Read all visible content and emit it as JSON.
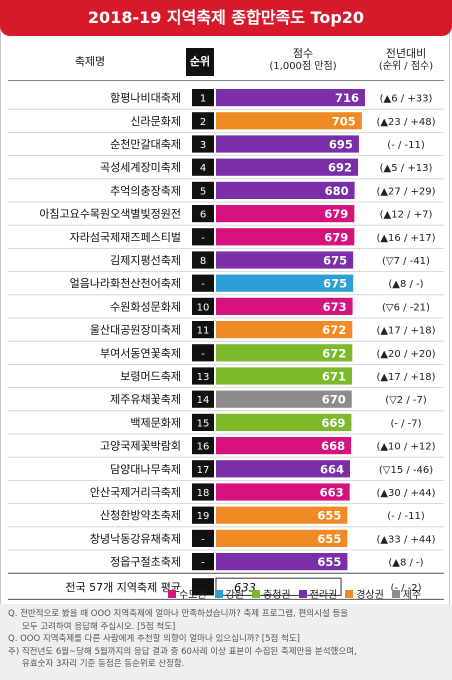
{
  "title": "2018-19 지역축제 종합만족도 Top20",
  "headers": {
    "name": "축제명",
    "rank": "순위",
    "score": "점수",
    "score_sub": "(1,000점 만점)",
    "change": "전년대비",
    "change_sub": "(순위 / 점수)"
  },
  "colors": {
    "수도권": "#d6127e",
    "강원": "#2c9fd6",
    "충청권": "#7cb92b",
    "전라권": "#7a2ea8",
    "경상권": "#f08a24",
    "제주": "#8c8c8c"
  },
  "legend": [
    "수도권",
    "강원",
    "충청권",
    "전라권",
    "경상권",
    "제주"
  ],
  "chart_data": {
    "type": "bar",
    "xlim": [
      0,
      1000
    ],
    "categories": [
      "함평나비대축제",
      "신라문화제",
      "순천만갈대축제",
      "곡성세계장미축제",
      "추억의충장축제",
      "아침고요수목원오색별빛정원전",
      "자라섬국제재즈페스티벌",
      "김제지평선축제",
      "얼음나라화천산천어축제",
      "수원화성문화제",
      "울산대공원장미축제",
      "부여서동연꽃축제",
      "보령머드축제",
      "제주유채꽃축제",
      "백제문화제",
      "고양국제꽃박람회",
      "담양대나무축제",
      "안산국제거리극축제",
      "산청한방약초축제",
      "창녕낙동강유채축제",
      "정읍구절초축제"
    ],
    "ranks": [
      "1",
      "2",
      "3",
      "4",
      "5",
      "6",
      "-",
      "8",
      "-",
      "10",
      "11",
      "-",
      "13",
      "14",
      "15",
      "16",
      "17",
      "18",
      "19",
      "-",
      "-"
    ],
    "values": [
      716,
      705,
      695,
      692,
      680,
      679,
      679,
      675,
      675,
      673,
      672,
      672,
      671,
      670,
      669,
      668,
      664,
      663,
      655,
      655,
      655
    ],
    "regions": [
      "전라권",
      "경상권",
      "전라권",
      "전라권",
      "전라권",
      "수도권",
      "수도권",
      "전라권",
      "강원",
      "수도권",
      "경상권",
      "충청권",
      "충청권",
      "제주",
      "충청권",
      "수도권",
      "전라권",
      "수도권",
      "경상권",
      "경상권",
      "전라권"
    ],
    "changes": [
      "(▲6 / +33)",
      "(▲23 / +48)",
      "(- / -11)",
      "(▲5 / +13)",
      "(▲27 / +29)",
      "(▲12 / +7)",
      "(▲16 / +17)",
      "(▽7 / -41)",
      "(▲8 / -)",
      "(▽6 / -21)",
      "(▲17 / +18)",
      "(▲20 / +20)",
      "(▲17 / +18)",
      "(▽2 / -7)",
      "(- / -7)",
      "(▲10 / +12)",
      "(▽15 / -46)",
      "(▲30 / +44)",
      "(- / -11)",
      "(▲33 / +44)",
      "(▲8 / -)"
    ],
    "average": {
      "label": "전국 57개 지역축제 평균",
      "value": 633,
      "change": "(- / -2)"
    }
  },
  "notes": [
    "Q. 전반적으로 봤을 때 OOO 지역축제에 얼마나 만족하셨습니까? 축제 프로그램, 편의시설 등을",
    "모두 고려하여 응답해 주십시오. [5점 척도]",
    "Q. OOO 지역축제를 다른 사람에게 추천할 의향이 얼마나 있으십니까? [5점 척도]",
    "주) 직전년도 6월~당해 5월까지의 응답 결과 중 60사례 이상 표본이 수집된 축제만을 분석했으며,",
    "유효숫자 3자리 기준 동점은 동순위로 산정함."
  ]
}
